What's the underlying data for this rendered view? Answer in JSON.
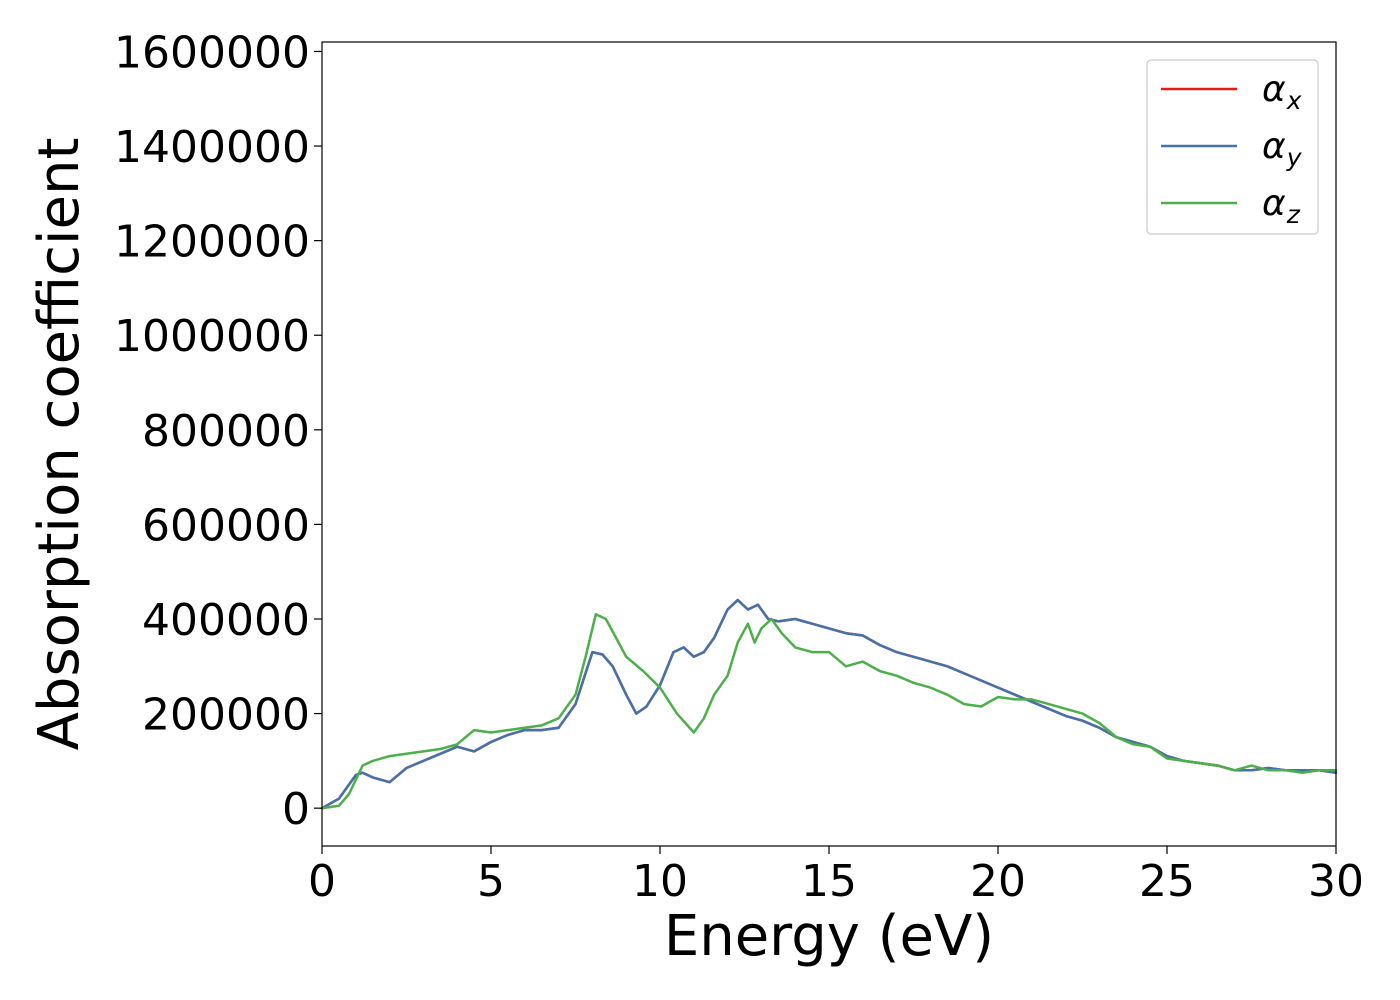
{
  "chart_data": {
    "type": "line",
    "title": "",
    "xlabel": "Energy (eV)",
    "ylabel": "Absorption coefficient",
    "xlim": [
      0,
      30
    ],
    "ylim": [
      -80000,
      1620000
    ],
    "xticks": [
      "0",
      "5",
      "10",
      "15",
      "20",
      "25",
      "30"
    ],
    "yticks": [
      "0",
      "200000",
      "400000",
      "600000",
      "800000",
      "1000000",
      "1200000",
      "1400000",
      "1600000"
    ],
    "grid": false,
    "legend_position": "top-right",
    "series": [
      {
        "name": "α_x",
        "legend_base": "α",
        "legend_sub": "x",
        "color": "#e41a1c",
        "x": [
          0,
          0.5,
          1,
          1.2,
          1.5,
          2,
          2.5,
          3,
          3.5,
          4,
          4.5,
          5,
          5.5,
          6,
          6.5,
          7,
          7.5,
          8,
          8.3,
          8.6,
          9,
          9.3,
          9.6,
          10,
          10.4,
          10.7,
          11,
          11.3,
          11.6,
          12,
          12.3,
          12.6,
          12.9,
          13.2,
          13.5,
          14,
          14.5,
          15,
          15.5,
          16,
          16.5,
          17,
          17.5,
          18,
          18.5,
          19,
          19.5,
          20,
          20.5,
          21,
          21.5,
          22,
          22.5,
          23,
          23.5,
          24,
          24.5,
          25,
          25.5,
          26,
          26.5,
          27,
          27.5,
          28,
          28.5,
          29,
          29.5,
          30
        ],
        "y": [
          0,
          20000,
          70000,
          75000,
          65000,
          55000,
          85000,
          100000,
          115000,
          130000,
          120000,
          140000,
          155000,
          165000,
          165000,
          170000,
          220000,
          330000,
          325000,
          300000,
          240000,
          200000,
          215000,
          260000,
          330000,
          340000,
          320000,
          330000,
          360000,
          420000,
          440000,
          420000,
          430000,
          400000,
          395000,
          400000,
          390000,
          380000,
          370000,
          365000,
          345000,
          330000,
          320000,
          310000,
          300000,
          285000,
          270000,
          255000,
          240000,
          225000,
          210000,
          195000,
          185000,
          170000,
          150000,
          140000,
          130000,
          110000,
          100000,
          95000,
          90000,
          80000,
          80000,
          85000,
          80000,
          80000,
          80000,
          75000
        ]
      },
      {
        "name": "α_y",
        "legend_base": "α",
        "legend_sub": "y",
        "color": "#4472aa",
        "x": [
          0,
          0.5,
          1,
          1.2,
          1.5,
          2,
          2.5,
          3,
          3.5,
          4,
          4.5,
          5,
          5.5,
          6,
          6.5,
          7,
          7.5,
          8,
          8.3,
          8.6,
          9,
          9.3,
          9.6,
          10,
          10.4,
          10.7,
          11,
          11.3,
          11.6,
          12,
          12.3,
          12.6,
          12.9,
          13.2,
          13.5,
          14,
          14.5,
          15,
          15.5,
          16,
          16.5,
          17,
          17.5,
          18,
          18.5,
          19,
          19.5,
          20,
          20.5,
          21,
          21.5,
          22,
          22.5,
          23,
          23.5,
          24,
          24.5,
          25,
          25.5,
          26,
          26.5,
          27,
          27.5,
          28,
          28.5,
          29,
          29.5,
          30
        ],
        "y": [
          0,
          20000,
          70000,
          75000,
          65000,
          55000,
          85000,
          100000,
          115000,
          130000,
          120000,
          140000,
          155000,
          165000,
          165000,
          170000,
          220000,
          330000,
          325000,
          300000,
          240000,
          200000,
          215000,
          260000,
          330000,
          340000,
          320000,
          330000,
          360000,
          420000,
          440000,
          420000,
          430000,
          400000,
          395000,
          400000,
          390000,
          380000,
          370000,
          365000,
          345000,
          330000,
          320000,
          310000,
          300000,
          285000,
          270000,
          255000,
          240000,
          225000,
          210000,
          195000,
          185000,
          170000,
          150000,
          140000,
          130000,
          110000,
          100000,
          95000,
          90000,
          80000,
          80000,
          85000,
          80000,
          80000,
          80000,
          75000
        ]
      },
      {
        "name": "α_z",
        "legend_base": "α",
        "legend_sub": "z",
        "color": "#4daf4a",
        "x": [
          0,
          0.5,
          0.8,
          1.2,
          1.5,
          2,
          2.5,
          3,
          3.5,
          4,
          4.5,
          5,
          5.5,
          6,
          6.5,
          7,
          7.5,
          7.8,
          8.1,
          8.4,
          8.7,
          9,
          9.5,
          10,
          10.5,
          11,
          11.3,
          11.6,
          12,
          12.3,
          12.6,
          12.8,
          13,
          13.3,
          13.6,
          14,
          14.5,
          15,
          15.5,
          16,
          16.5,
          17,
          17.5,
          18,
          18.5,
          19,
          19.5,
          20,
          20.5,
          21,
          21.5,
          22,
          22.5,
          23,
          23.5,
          24,
          24.5,
          25,
          25.5,
          26,
          26.5,
          27,
          27.5,
          28,
          28.5,
          29,
          29.5,
          30
        ],
        "y": [
          0,
          5000,
          30000,
          90000,
          100000,
          110000,
          115000,
          120000,
          125000,
          135000,
          165000,
          160000,
          165000,
          170000,
          175000,
          190000,
          240000,
          320000,
          410000,
          400000,
          360000,
          320000,
          290000,
          255000,
          200000,
          160000,
          190000,
          240000,
          280000,
          350000,
          390000,
          350000,
          380000,
          400000,
          370000,
          340000,
          330000,
          330000,
          300000,
          310000,
          290000,
          280000,
          265000,
          255000,
          240000,
          220000,
          215000,
          235000,
          230000,
          230000,
          220000,
          210000,
          200000,
          180000,
          150000,
          135000,
          130000,
          105000,
          100000,
          95000,
          90000,
          80000,
          90000,
          80000,
          80000,
          75000,
          80000,
          80000
        ]
      }
    ]
  }
}
